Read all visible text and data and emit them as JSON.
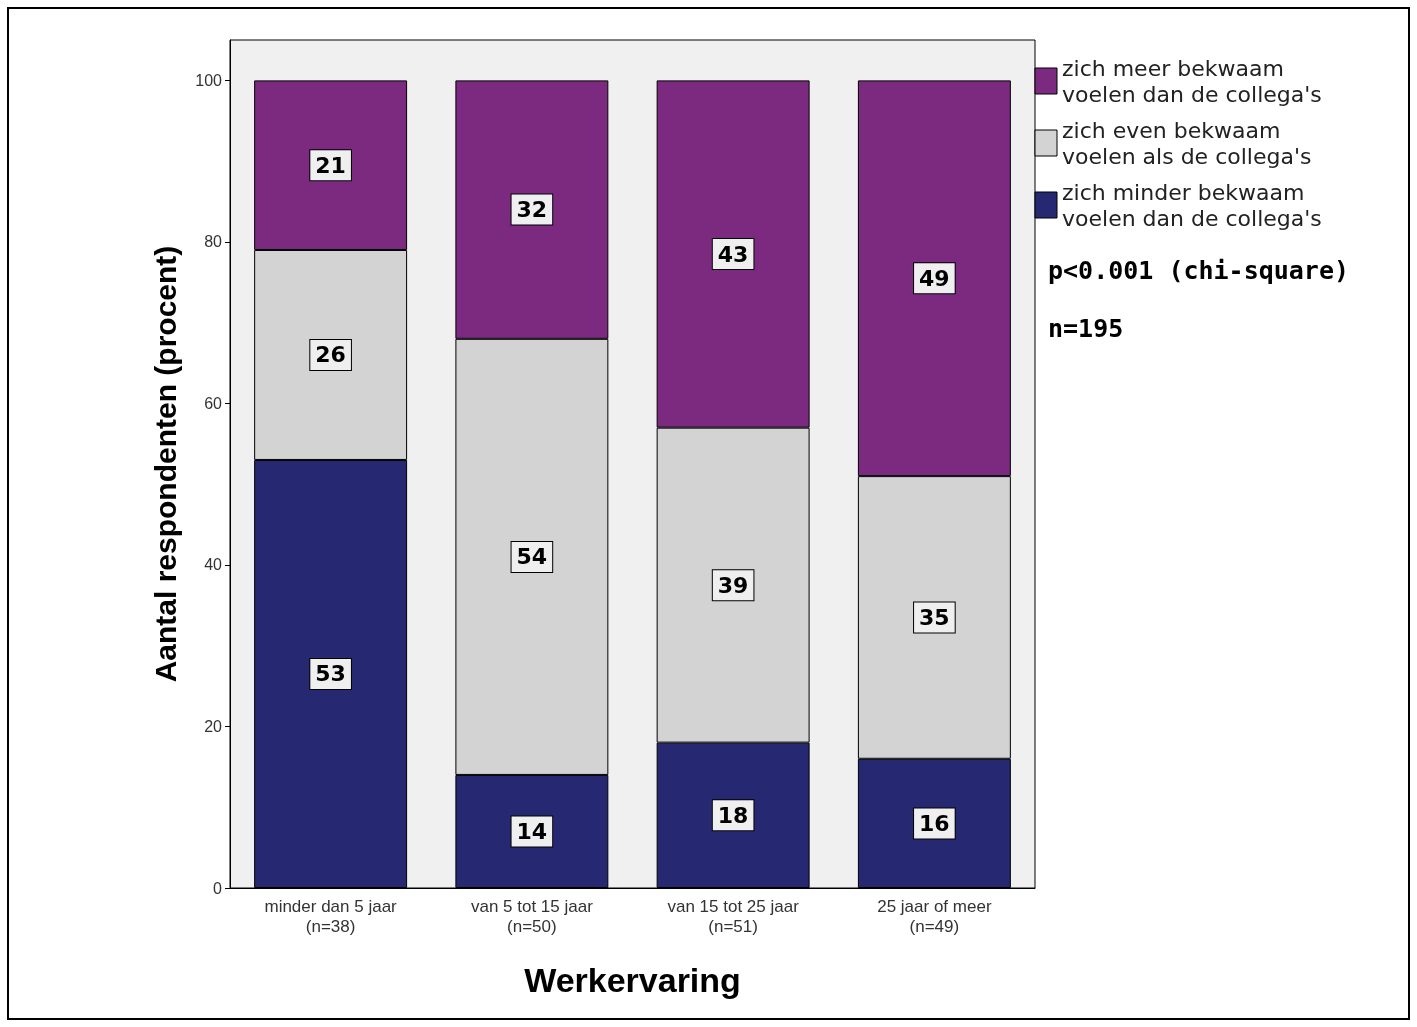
{
  "chart_data": {
    "type": "bar",
    "stacked": true,
    "xlabel": "Werkervaring",
    "ylabel": "Aantal respondenten (procent)",
    "categories": [
      "minder dan 5 jaar\n(n=38)",
      "van 5 tot 15 jaar\n(n=50)",
      "van 15 tot 25 jaar\n(n=51)",
      "25 jaar of meer\n(n=49)"
    ],
    "series": [
      {
        "name": "zich minder bekwaam voelen dan de collega's",
        "color": "#262872",
        "values": [
          53,
          14,
          18,
          16
        ]
      },
      {
        "name": "zich even bekwaam voelen als de collega's",
        "color": "#d3d3d3",
        "values": [
          26,
          54,
          39,
          35
        ]
      },
      {
        "name": "zich meer bekwaam voelen dan de collega's",
        "color": "#7b2a80",
        "values": [
          21,
          32,
          43,
          49
        ]
      }
    ],
    "ylim": [
      0,
      105
    ],
    "yticks": [
      0,
      20,
      40,
      60,
      80,
      100
    ],
    "grid": false,
    "legend": "top right",
    "data_labels": true,
    "annotations": [
      "p<0.001 (chi-square)",
      "n=195"
    ]
  }
}
